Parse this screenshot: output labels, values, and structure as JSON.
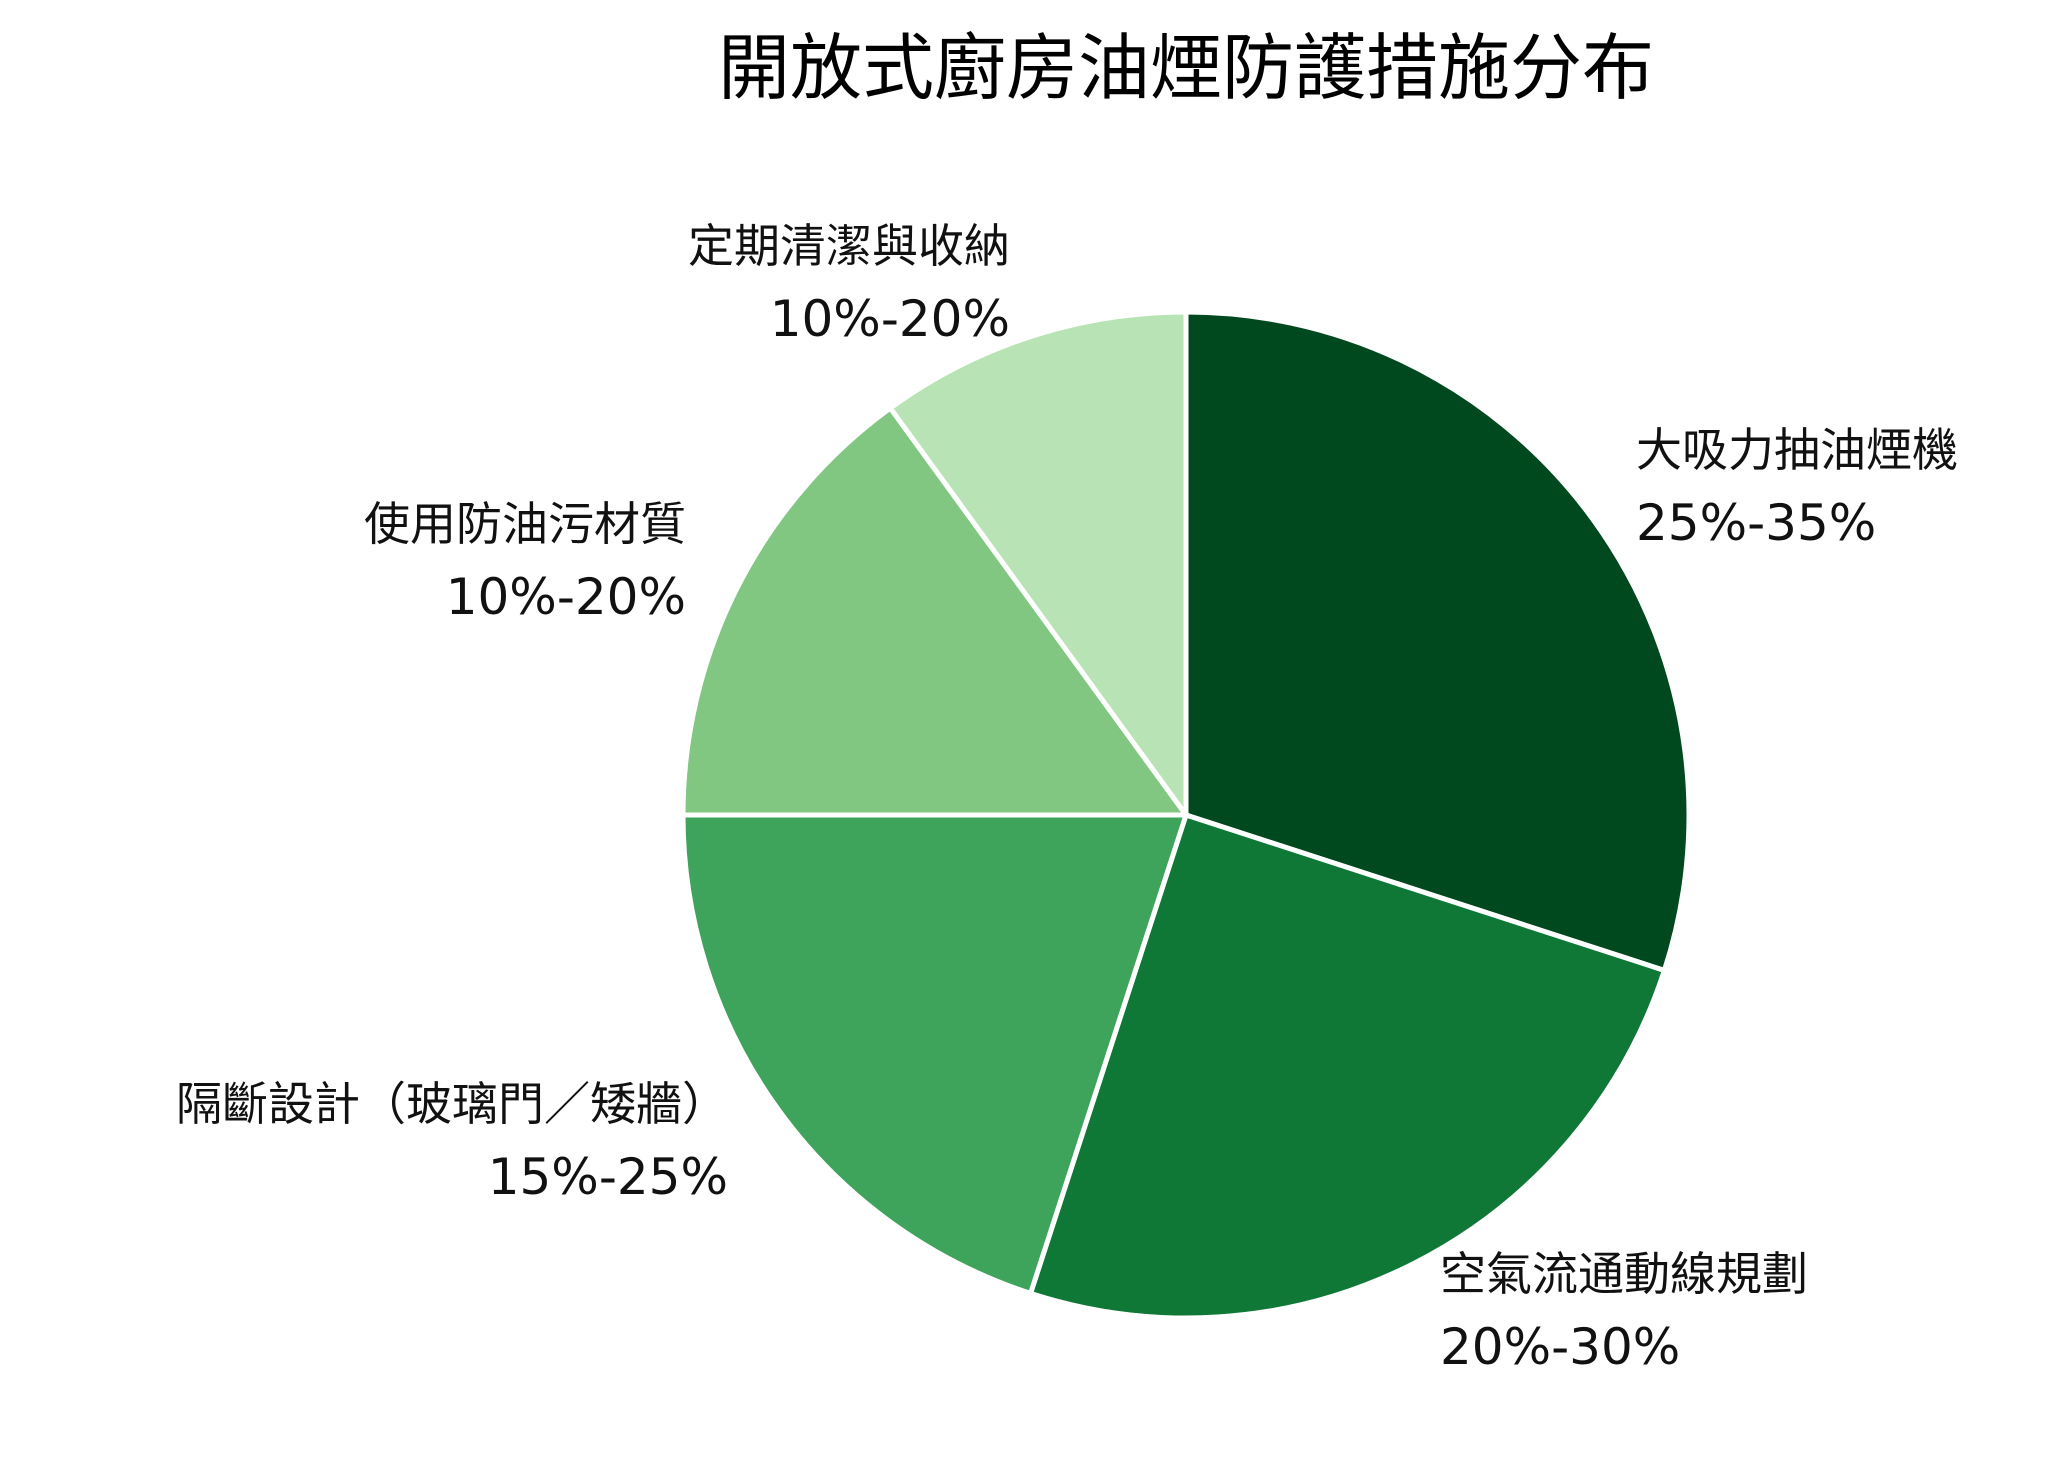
{
  "chart_data": {
    "type": "pie",
    "title": "開放式廚房油煙防護措施分布",
    "start_angle_deg": 0,
    "direction": "clockwise",
    "slices": [
      {
        "label": "大吸力抽油煙機",
        "range": "25%-35%",
        "value": 30,
        "color": "#00481e"
      },
      {
        "label": "空氣流通動線規劃",
        "range": "20%-30%",
        "value": 25,
        "color": "#0f7837"
      },
      {
        "label": "隔斷設計（玻璃門／矮牆）",
        "range": "15%-25%",
        "value": 20,
        "color": "#3ea45b"
      },
      {
        "label": "使用防油污材質",
        "range": "10%-20%",
        "value": 15,
        "color": "#81c782"
      },
      {
        "label": "定期清潔與收納",
        "range": "10%-20%",
        "value": 10,
        "color": "#b8e3b5"
      }
    ]
  }
}
